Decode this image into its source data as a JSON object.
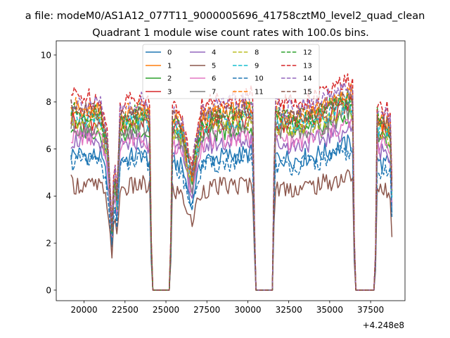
{
  "figure": {
    "suptitle": "a file: modeM0/AS1A12_077T11_9000005696_41758cztM0_level2_quad_clean",
    "title": "Quadrant 1 module wise count rates with 100.0s bins.",
    "x_offset_label": "+4.248e8"
  },
  "chart_data": {
    "type": "line",
    "title": "Quadrant 1 module wise count rates with 100.0s bins.",
    "xlabel": "",
    "ylabel": "",
    "x_offset": 424800000,
    "xlim": [
      18300,
      39600
    ],
    "ylim": [
      -0.45,
      10.6
    ],
    "x_ticks": [
      20000,
      22500,
      25000,
      27500,
      30000,
      32500,
      35000,
      37500
    ],
    "x_tick_labels": [
      "20000",
      "22500",
      "25000",
      "27500",
      "30000",
      "32500",
      "35000",
      "37500"
    ],
    "y_ticks": [
      0,
      2,
      4,
      6,
      8,
      10
    ],
    "y_tick_labels": [
      "0",
      "2",
      "4",
      "6",
      "8",
      "10"
    ],
    "x_knots": [
      19200,
      21000,
      21450,
      21700,
      21850,
      22000,
      22200,
      23500,
      24050,
      24120,
      25280,
      25350,
      26000,
      26300,
      26600,
      26800,
      27200,
      28500,
      30200,
      30350,
      30430,
      31550,
      31630,
      31800,
      33000,
      34500,
      36350,
      36450,
      36520,
      37780,
      37880,
      38000,
      38500,
      38750,
      38850
    ],
    "rate_shape": [
      1.0,
      0.98,
      0.8,
      0.33,
      0.7,
      0.5,
      0.95,
      1.0,
      0.95,
      0.0,
      0.0,
      0.95,
      0.9,
      0.75,
      0.62,
      0.78,
      0.95,
      0.98,
      1.0,
      0.95,
      0.0,
      0.0,
      1.0,
      0.97,
      0.96,
      1.0,
      1.08,
      1.02,
      0.0,
      0.0,
      0.98,
      0.93,
      0.93,
      0.88,
      0.22
    ],
    "series": [
      {
        "name": "0",
        "style": "solid",
        "color": "#1f77b4",
        "level": 5.8
      },
      {
        "name": "1",
        "style": "solid",
        "color": "#ff7f0e",
        "level": 7.7
      },
      {
        "name": "2",
        "style": "solid",
        "color": "#2ca02c",
        "level": 6.9
      },
      {
        "name": "3",
        "style": "solid",
        "color": "#d62728",
        "level": 7.3
      },
      {
        "name": "4",
        "style": "solid",
        "color": "#9467bd",
        "level": 6.4
      },
      {
        "name": "5",
        "style": "solid",
        "color": "#8c564b",
        "level": 4.5
      },
      {
        "name": "6",
        "style": "solid",
        "color": "#e377c2",
        "level": 6.6
      },
      {
        "name": "7",
        "style": "solid",
        "color": "#7f7f7f",
        "level": 7.0
      },
      {
        "name": "8",
        "style": "dashed",
        "color": "#bcbd22",
        "level": 7.2
      },
      {
        "name": "9",
        "style": "dashed",
        "color": "#17becf",
        "level": 7.4
      },
      {
        "name": "10",
        "style": "dashed",
        "color": "#1f77b4",
        "level": 5.5
      },
      {
        "name": "11",
        "style": "dashed",
        "color": "#ff7f0e",
        "level": 7.8
      },
      {
        "name": "12",
        "style": "dashed",
        "color": "#2ca02c",
        "level": 7.6
      },
      {
        "name": "13",
        "style": "dashed",
        "color": "#d62728",
        "level": 8.3
      },
      {
        "name": "14",
        "style": "dashed",
        "color": "#9467bd",
        "level": 8.0
      },
      {
        "name": "15",
        "style": "dashed",
        "color": "#8c564b",
        "level": 7.7
      }
    ],
    "legend": {
      "location": "upper center",
      "columns": 4
    }
  }
}
